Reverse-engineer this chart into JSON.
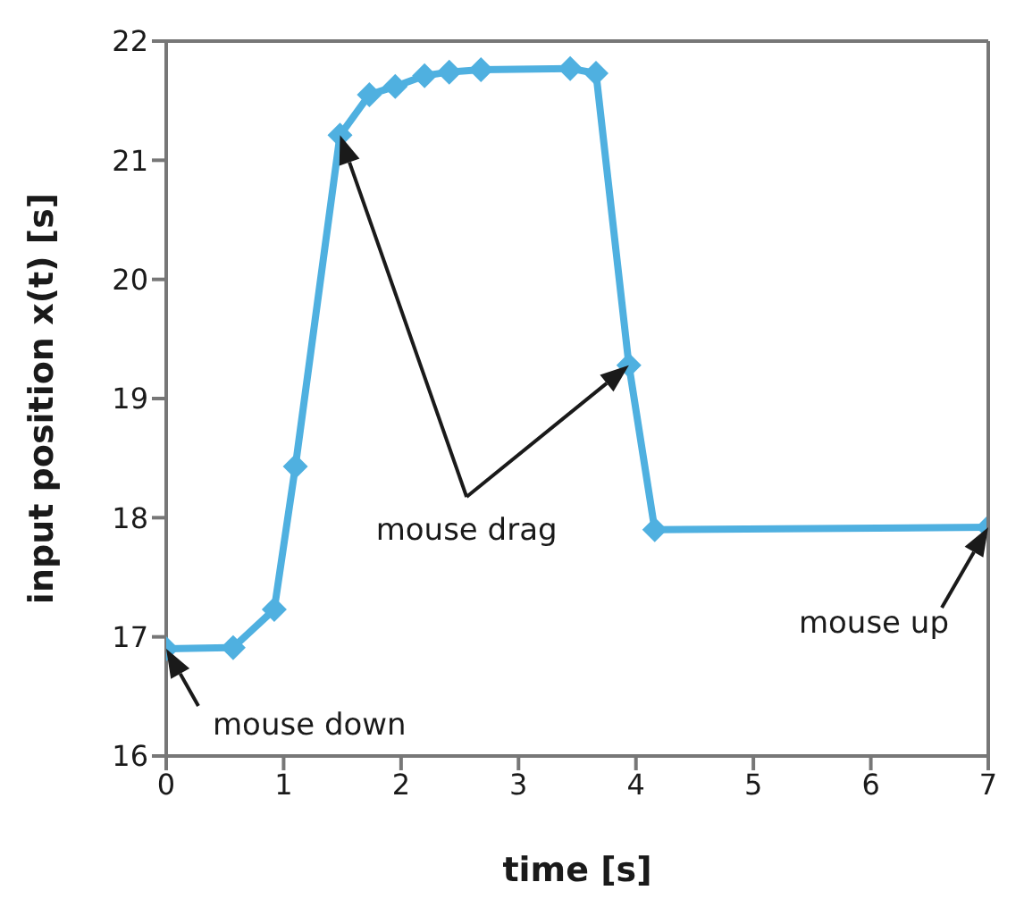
{
  "chart_data": {
    "type": "line",
    "xlabel": "time [s]",
    "ylabel": "input position x(t) [s]",
    "x": [
      0,
      0.57,
      0.92,
      1.1,
      1.48,
      1.73,
      1.95,
      2.2,
      2.41,
      2.68,
      3.44,
      3.66,
      3.94,
      4.16,
      7
    ],
    "series": [
      {
        "color": "#4fb0e0",
        "values": [
          16.9,
          16.91,
          17.23,
          18.43,
          21.21,
          21.55,
          21.62,
          21.71,
          21.74,
          21.76,
          21.77,
          21.73,
          19.28,
          17.9,
          17.92
        ]
      }
    ],
    "xlim": [
      0,
      7
    ],
    "xticks": [
      0,
      1,
      2,
      3,
      4,
      5,
      6,
      7
    ],
    "ylim": [
      16,
      22
    ],
    "yticks": [
      16,
      17,
      18,
      19,
      20,
      21,
      22
    ],
    "grid": false,
    "legend": false,
    "marker": "diamond",
    "line_style": "solid",
    "annotations": [
      {
        "text": "mouse down",
        "x": 0,
        "y": 16.9
      },
      "mouse drag",
      {
        "text": "mouse up",
        "x": 7,
        "y": 17.92
      }
    ]
  }
}
